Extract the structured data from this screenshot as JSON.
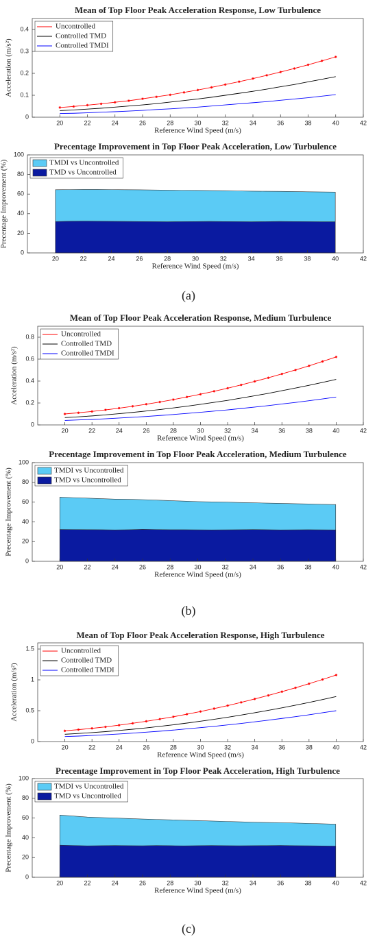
{
  "chart_data": [
    {
      "type": "line",
      "title": "Mean of Top Floor Peak Acceleration Response, Low Turbulence",
      "x_label": "Reference Wind Speed (m/s)",
      "y_label": "Acceleration (m/s²)",
      "x": [
        20,
        21,
        22,
        23,
        24,
        25,
        26,
        27,
        28,
        29,
        30,
        31,
        32,
        33,
        34,
        35,
        36,
        37,
        38,
        39,
        40
      ],
      "xlim": [
        18,
        42
      ],
      "xticks": [
        20,
        22,
        24,
        26,
        28,
        30,
        32,
        34,
        36,
        38,
        40,
        42
      ],
      "ylim": [
        0,
        0.45
      ],
      "yticks": [
        0,
        0.1,
        0.2,
        0.3,
        0.4
      ],
      "legend": "northwest",
      "series": [
        {
          "name": "Uncontrolled",
          "color": "#ff0000",
          "marker": "*",
          "values": [
            0.044,
            0.049,
            0.055,
            0.061,
            0.068,
            0.075,
            0.084,
            0.093,
            0.102,
            0.113,
            0.124,
            0.136,
            0.149,
            0.162,
            0.176,
            0.191,
            0.206,
            0.222,
            0.239,
            0.257,
            0.275
          ]
        },
        {
          "name": "Controlled TMD",
          "color": "#000000",
          "values": [
            0.03,
            0.033,
            0.037,
            0.041,
            0.046,
            0.051,
            0.056,
            0.062,
            0.069,
            0.076,
            0.083,
            0.091,
            0.1,
            0.109,
            0.118,
            0.128,
            0.139,
            0.149,
            0.161,
            0.173,
            0.185
          ]
        },
        {
          "name": "Controlled TMDI",
          "color": "#0000ff",
          "values": [
            0.017,
            0.018,
            0.02,
            0.023,
            0.025,
            0.028,
            0.031,
            0.035,
            0.038,
            0.042,
            0.046,
            0.051,
            0.056,
            0.061,
            0.066,
            0.071,
            0.077,
            0.083,
            0.089,
            0.096,
            0.103
          ]
        }
      ]
    },
    {
      "type": "area",
      "title": "Precentage Improvement in Top Floor Peak Acceleration, Low Turbulence",
      "x_label": "Reference Wind Speed (m/s)",
      "y_label": "Precentage Improvement (%)",
      "x": [
        20,
        21,
        22,
        23,
        24,
        25,
        26,
        27,
        28,
        29,
        30,
        31,
        32,
        33,
        34,
        35,
        36,
        37,
        38,
        39,
        40
      ],
      "xlim": [
        18,
        42
      ],
      "xticks": [
        20,
        22,
        24,
        26,
        28,
        30,
        32,
        34,
        36,
        38,
        40,
        42
      ],
      "ylim": [
        0,
        100
      ],
      "yticks": [
        0,
        20,
        40,
        60,
        80,
        100
      ],
      "legend": "northwest",
      "series": [
        {
          "name": "TMDI vs Uncontrolled",
          "color": "#5bcbf5",
          "values": [
            64.5,
            64.6,
            64.7,
            64.7,
            64.6,
            64.5,
            64.4,
            64.2,
            64.0,
            63.9,
            63.8,
            63.6,
            63.4,
            63.2,
            63.0,
            62.9,
            62.8,
            62.6,
            62.4,
            62.2,
            62.0
          ]
        },
        {
          "name": "TMD vs Uncontrolled",
          "color": "#0a1aa0",
          "values": [
            32.0,
            32.3,
            32.4,
            32.3,
            32.2,
            32.1,
            32.0,
            31.9,
            31.8,
            31.9,
            32.0,
            32.1,
            32.0,
            31.9,
            31.8,
            31.9,
            32.1,
            32.0,
            31.9,
            31.8,
            31.8
          ]
        }
      ]
    },
    {
      "type": "line",
      "title": "Mean of Top Floor Peak Acceleration Response, Medium Turbulence",
      "x_label": "Reference Wind Speed (m/s)",
      "y_label": "Acceleration (m/s²)",
      "x": [
        20,
        21,
        22,
        23,
        24,
        25,
        26,
        27,
        28,
        29,
        30,
        31,
        32,
        33,
        34,
        35,
        36,
        37,
        38,
        39,
        40
      ],
      "xlim": [
        18,
        42
      ],
      "xticks": [
        20,
        22,
        24,
        26,
        28,
        30,
        32,
        34,
        36,
        38,
        40,
        42
      ],
      "ylim": [
        0,
        0.9
      ],
      "yticks": [
        0,
        0.2,
        0.4,
        0.6,
        0.8
      ],
      "legend": "northwest",
      "series": [
        {
          "name": "Uncontrolled",
          "color": "#ff0000",
          "marker": "*",
          "values": [
            0.1,
            0.111,
            0.123,
            0.137,
            0.153,
            0.17,
            0.189,
            0.209,
            0.231,
            0.255,
            0.28,
            0.307,
            0.335,
            0.365,
            0.397,
            0.43,
            0.465,
            0.501,
            0.539,
            0.579,
            0.62
          ]
        },
        {
          "name": "Controlled TMD",
          "color": "#000000",
          "values": [
            0.067,
            0.074,
            0.082,
            0.092,
            0.103,
            0.114,
            0.127,
            0.14,
            0.155,
            0.171,
            0.188,
            0.206,
            0.224,
            0.245,
            0.266,
            0.288,
            0.312,
            0.336,
            0.361,
            0.388,
            0.415
          ]
        },
        {
          "name": "Controlled TMDI",
          "color": "#0000ff",
          "values": [
            0.041,
            0.046,
            0.05,
            0.056,
            0.063,
            0.07,
            0.077,
            0.086,
            0.095,
            0.105,
            0.115,
            0.126,
            0.137,
            0.15,
            0.163,
            0.176,
            0.191,
            0.205,
            0.221,
            0.237,
            0.254
          ]
        }
      ]
    },
    {
      "type": "area",
      "title": "Precentage Improvement in Top Floor Peak Acceleration, Medium Turbulence",
      "x_label": "Reference Wind Speed (m/s)",
      "y_label": "Precentage Improvement (%)",
      "x": [
        20,
        21,
        22,
        23,
        24,
        25,
        26,
        27,
        28,
        29,
        30,
        31,
        32,
        33,
        34,
        35,
        36,
        37,
        38,
        39,
        40
      ],
      "xlim": [
        18,
        42
      ],
      "xticks": [
        20,
        22,
        24,
        26,
        28,
        30,
        32,
        34,
        36,
        38,
        40,
        42
      ],
      "ylim": [
        0,
        100
      ],
      "yticks": [
        0,
        20,
        40,
        60,
        80,
        100
      ],
      "legend": "northwest",
      "series": [
        {
          "name": "TMDI vs Uncontrolled",
          "color": "#5bcbf5",
          "values": [
            65.0,
            64.5,
            64.0,
            63.5,
            63.0,
            62.8,
            62.5,
            62.0,
            61.5,
            61.0,
            60.5,
            60.2,
            60.0,
            59.6,
            59.3,
            59.0,
            58.7,
            58.4,
            58.1,
            57.8,
            57.5
          ]
        },
        {
          "name": "TMD vs Uncontrolled",
          "color": "#0a1aa0",
          "values": [
            32.3,
            32.2,
            32.1,
            32.0,
            31.8,
            32.0,
            32.4,
            32.2,
            32.0,
            32.0,
            31.9,
            31.8,
            31.9,
            32.0,
            32.2,
            32.0,
            31.8,
            31.9,
            32.0,
            31.9,
            31.8
          ]
        }
      ]
    },
    {
      "type": "line",
      "title": "Mean of Top Floor Peak Acceleration Response, High Turbulence",
      "x_label": "Reference Wind Speed (m/s)",
      "y_label": "Acceleration (m/s²)",
      "x": [
        20,
        21,
        22,
        23,
        24,
        25,
        26,
        27,
        28,
        29,
        30,
        31,
        32,
        33,
        34,
        35,
        36,
        37,
        38,
        39,
        40
      ],
      "xlim": [
        18,
        42
      ],
      "xticks": [
        20,
        22,
        24,
        26,
        28,
        30,
        32,
        34,
        36,
        38,
        40,
        42
      ],
      "ylim": [
        0,
        1.6
      ],
      "yticks": [
        0,
        0.5,
        1,
        1.5
      ],
      "legend": "northwest",
      "series": [
        {
          "name": "Uncontrolled",
          "color": "#ff0000",
          "marker": "*",
          "values": [
            0.174,
            0.193,
            0.214,
            0.238,
            0.266,
            0.296,
            0.329,
            0.364,
            0.402,
            0.444,
            0.487,
            0.534,
            0.583,
            0.635,
            0.691,
            0.748,
            0.809,
            0.872,
            0.938,
            1.007,
            1.079
          ]
        },
        {
          "name": "Controlled TMD",
          "color": "#000000",
          "values": [
            0.118,
            0.131,
            0.145,
            0.161,
            0.18,
            0.2,
            0.222,
            0.246,
            0.272,
            0.3,
            0.33,
            0.361,
            0.394,
            0.43,
            0.467,
            0.506,
            0.547,
            0.59,
            0.634,
            0.681,
            0.73
          ]
        },
        {
          "name": "Controlled TMDI",
          "color": "#0000ff",
          "values": [
            0.081,
            0.089,
            0.099,
            0.11,
            0.123,
            0.137,
            0.152,
            0.168,
            0.186,
            0.206,
            0.226,
            0.247,
            0.27,
            0.294,
            0.32,
            0.347,
            0.375,
            0.404,
            0.434,
            0.467,
            0.5
          ]
        }
      ]
    },
    {
      "type": "area",
      "title": "Precentage Improvement in Top Floor Peak Acceleration, High Turbulence",
      "x_label": "Reference Wind Speed (m/s)",
      "y_label": "Precentage Improvement (%)",
      "x": [
        20,
        21,
        22,
        23,
        24,
        25,
        26,
        27,
        28,
        29,
        30,
        31,
        32,
        33,
        34,
        35,
        36,
        37,
        38,
        39,
        40
      ],
      "xlim": [
        18,
        42
      ],
      "xticks": [
        20,
        22,
        24,
        26,
        28,
        30,
        32,
        34,
        36,
        38,
        40,
        42
      ],
      "ylim": [
        0,
        100
      ],
      "yticks": [
        0,
        20,
        40,
        60,
        80,
        100
      ],
      "legend": "northwest",
      "series": [
        {
          "name": "TMDI vs Uncontrolled",
          "color": "#5bcbf5",
          "values": [
            63.0,
            62.0,
            61.0,
            60.5,
            60.0,
            59.5,
            59.0,
            58.6,
            58.2,
            57.8,
            57.4,
            57.0,
            56.6,
            56.2,
            55.8,
            55.5,
            55.3,
            55.0,
            54.6,
            54.2,
            53.8
          ]
        },
        {
          "name": "TMD vs Uncontrolled",
          "color": "#0a1aa0",
          "values": [
            32.5,
            32.2,
            31.8,
            32.0,
            32.2,
            32.0,
            31.9,
            32.2,
            32.0,
            31.8,
            32.0,
            32.2,
            32.0,
            31.9,
            32.0,
            32.1,
            32.3,
            32.0,
            31.9,
            31.7,
            31.6
          ]
        }
      ]
    }
  ],
  "captions": [
    "(a)",
    "(b)",
    "(c)"
  ]
}
